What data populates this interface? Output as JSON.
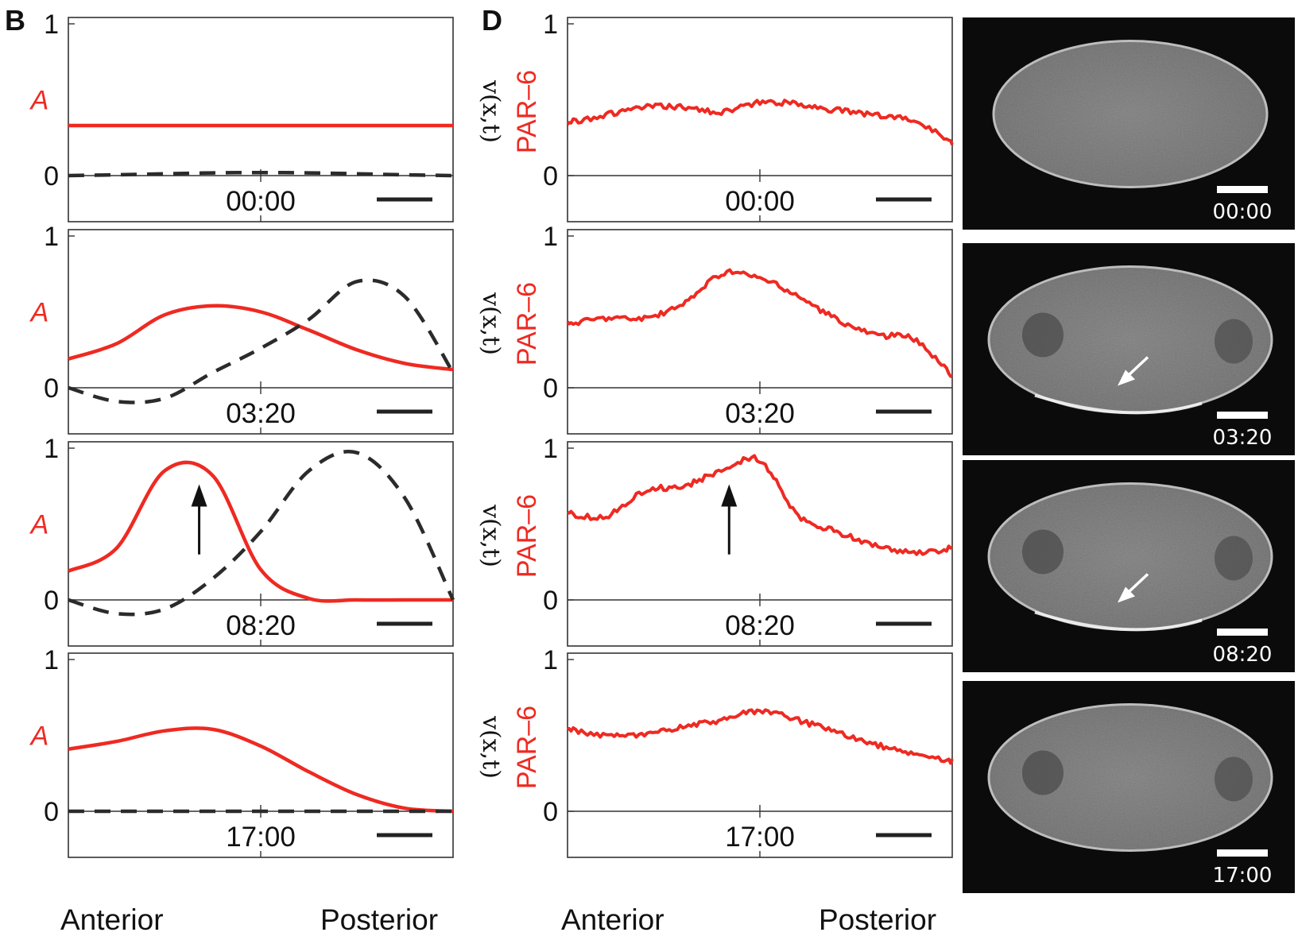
{
  "panel_labels": {
    "left": "B",
    "right": "D"
  },
  "timepoints": [
    "00:00",
    "03:20",
    "08:20",
    "17:00"
  ],
  "y_ticks": [
    "1",
    "0"
  ],
  "model_ylabel_red": "A",
  "model_ylabel_dash": "v(x,t)",
  "data_ylabel": "PAR–6",
  "x_categories": {
    "anterior": "Anterior",
    "posterior": "Posterior"
  },
  "colors": {
    "red": "#ee2a22",
    "dash": "#2b2b2b",
    "axes": "#333333",
    "image_bg": "#0b0b0b"
  },
  "chart_data": [
    {
      "panel": "B",
      "type": "line",
      "timepoint": "00:00",
      "x": [
        0,
        0.125,
        0.25,
        0.375,
        0.5,
        0.625,
        0.75,
        0.875,
        1
      ],
      "series": [
        {
          "values": [
            0.33,
            0.33,
            0.33,
            0.33,
            0.33,
            0.33,
            0.33,
            0.33,
            0.33
          ],
          "style": "solid-red"
        },
        {
          "values": [
            0.0,
            0.005,
            0.012,
            0.018,
            0.02,
            0.018,
            0.012,
            0.005,
            0.0
          ],
          "style": "dashed-black"
        }
      ],
      "ylim": [
        -0.3,
        1
      ],
      "arrow": false
    },
    {
      "panel": "B",
      "type": "line",
      "timepoint": "03:20",
      "x": [
        0,
        0.125,
        0.25,
        0.375,
        0.5,
        0.625,
        0.75,
        0.875,
        1
      ],
      "series": [
        {
          "values": [
            0.19,
            0.29,
            0.48,
            0.54,
            0.5,
            0.38,
            0.25,
            0.16,
            0.12
          ],
          "style": "solid-red"
        },
        {
          "values": [
            0.0,
            -0.09,
            -0.07,
            0.1,
            0.26,
            0.45,
            0.7,
            0.6,
            0.1
          ],
          "style": "dashed-black"
        }
      ],
      "ylim": [
        -0.3,
        1
      ],
      "arrow": false
    },
    {
      "panel": "B",
      "type": "line",
      "timepoint": "08:20",
      "x": [
        0,
        0.125,
        0.25,
        0.375,
        0.5,
        0.625,
        0.75,
        0.875,
        1
      ],
      "series": [
        {
          "values": [
            0.19,
            0.34,
            0.85,
            0.82,
            0.2,
            0.01,
            0.0,
            0.0,
            0.0
          ],
          "style": "solid-red"
        },
        {
          "values": [
            0.0,
            -0.09,
            -0.06,
            0.14,
            0.45,
            0.85,
            0.97,
            0.67,
            0.0
          ],
          "style": "dashed-black"
        }
      ],
      "ylim": [
        -0.3,
        1
      ],
      "arrow": true,
      "arrow_x": 0.34
    },
    {
      "panel": "B",
      "type": "line",
      "timepoint": "17:00",
      "x": [
        0,
        0.125,
        0.25,
        0.375,
        0.5,
        0.625,
        0.75,
        0.875,
        1
      ],
      "series": [
        {
          "values": [
            0.41,
            0.46,
            0.53,
            0.54,
            0.43,
            0.26,
            0.11,
            0.02,
            0.0
          ],
          "style": "solid-red"
        },
        {
          "values": [
            0,
            0,
            0,
            0,
            0,
            0,
            0,
            0,
            0
          ],
          "style": "dashed-black"
        }
      ],
      "ylim": [
        -0.3,
        1
      ],
      "arrow": false
    },
    {
      "panel": "D",
      "type": "line",
      "timepoint": "00:00",
      "x": [
        0,
        0.1,
        0.2,
        0.3,
        0.4,
        0.5,
        0.6,
        0.7,
        0.8,
        0.9,
        1
      ],
      "series": [
        {
          "values": [
            0.35,
            0.4,
            0.45,
            0.45,
            0.42,
            0.48,
            0.47,
            0.43,
            0.4,
            0.36,
            0.22
          ],
          "style": "solid-red"
        }
      ],
      "ylim": [
        -0.3,
        1
      ],
      "arrow": false
    },
    {
      "panel": "D",
      "type": "line",
      "timepoint": "03:20",
      "x": [
        0,
        0.1,
        0.2,
        0.3,
        0.4,
        0.5,
        0.6,
        0.7,
        0.8,
        0.9,
        1
      ],
      "series": [
        {
          "values": [
            0.42,
            0.46,
            0.46,
            0.55,
            0.75,
            0.72,
            0.6,
            0.45,
            0.35,
            0.32,
            0.08
          ],
          "style": "solid-red"
        }
      ],
      "ylim": [
        -0.3,
        1
      ],
      "arrow": false
    },
    {
      "panel": "D",
      "type": "line",
      "timepoint": "08:20",
      "x": [
        0,
        0.1,
        0.2,
        0.3,
        0.4,
        0.5,
        0.6,
        0.7,
        0.8,
        0.9,
        1
      ],
      "series": [
        {
          "values": [
            0.57,
            0.55,
            0.72,
            0.75,
            0.85,
            0.92,
            0.55,
            0.45,
            0.36,
            0.31,
            0.34
          ],
          "style": "solid-red"
        }
      ],
      "ylim": [
        -0.3,
        1
      ],
      "arrow": true,
      "arrow_x": 0.42
    },
    {
      "panel": "D",
      "type": "line",
      "timepoint": "17:00",
      "x": [
        0,
        0.1,
        0.2,
        0.3,
        0.4,
        0.5,
        0.6,
        0.7,
        0.8,
        0.9,
        1
      ],
      "series": [
        {
          "values": [
            0.54,
            0.5,
            0.5,
            0.56,
            0.6,
            0.66,
            0.6,
            0.52,
            0.44,
            0.38,
            0.33
          ],
          "style": "solid-red"
        }
      ],
      "ylim": [
        -0.3,
        1
      ],
      "arrow": false
    }
  ]
}
